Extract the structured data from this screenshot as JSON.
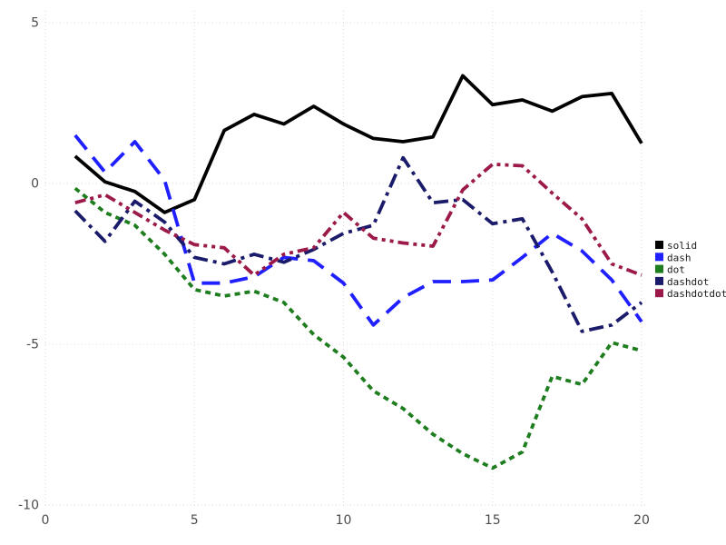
{
  "chart_data": {
    "type": "line",
    "x": [
      1,
      2,
      3,
      4,
      5,
      6,
      7,
      8,
      9,
      10,
      11,
      12,
      13,
      14,
      15,
      16,
      17,
      18,
      19,
      20
    ],
    "series": [
      {
        "name": "solid",
        "linestyle": "solid",
        "color": "#000000",
        "values": [
          0.85,
          0.05,
          -0.25,
          -0.9,
          -0.5,
          1.65,
          2.15,
          1.85,
          2.4,
          1.85,
          1.4,
          1.3,
          1.45,
          3.35,
          2.45,
          2.6,
          2.25,
          2.7,
          2.8,
          1.25
        ]
      },
      {
        "name": "dash",
        "linestyle": "dash",
        "color": "#1f1fff",
        "values": [
          1.5,
          0.35,
          1.3,
          0.1,
          -3.1,
          -3.1,
          -2.9,
          -2.3,
          -2.4,
          -3.1,
          -4.4,
          -3.55,
          -3.05,
          -3.05,
          -3.0,
          -2.3,
          -1.55,
          -2.1,
          -3.0,
          -4.3
        ]
      },
      {
        "name": "dot",
        "linestyle": "dot",
        "color": "#1e7d1e",
        "values": [
          -0.15,
          -0.9,
          -1.3,
          -2.2,
          -3.3,
          -3.5,
          -3.35,
          -3.7,
          -4.7,
          -5.4,
          -6.45,
          -7.0,
          -7.8,
          -8.4,
          -8.85,
          -8.35,
          -6.0,
          -6.25,
          -4.95,
          -5.2
        ]
      },
      {
        "name": "dashdot",
        "linestyle": "dashdot",
        "color": "#1b1b6b",
        "values": [
          -0.85,
          -1.8,
          -0.55,
          -1.2,
          -2.3,
          -2.5,
          -2.2,
          -2.45,
          -2.05,
          -1.55,
          -1.3,
          0.8,
          -0.6,
          -0.5,
          -1.25,
          -1.1,
          -2.75,
          -4.6,
          -4.4,
          -3.7
        ]
      },
      {
        "name": "dashdotdot",
        "linestyle": "dashdotdot",
        "color": "#9c1a4a",
        "values": [
          -0.6,
          -0.35,
          -0.9,
          -1.45,
          -1.9,
          -2.0,
          -2.85,
          -2.2,
          -2.0,
          -0.9,
          -1.7,
          -1.85,
          -1.95,
          -0.2,
          0.6,
          0.55,
          -0.3,
          -1.1,
          -2.5,
          -2.85
        ]
      }
    ],
    "x_ticks": [
      {
        "v": 0,
        "label": "0"
      },
      {
        "v": 5,
        "label": "5"
      },
      {
        "v": 10,
        "label": "10"
      },
      {
        "v": 15,
        "label": "15"
      },
      {
        "v": 20,
        "label": "20"
      }
    ],
    "y_ticks": [
      {
        "v": 5,
        "label": "5"
      },
      {
        "v": 0,
        "label": "0"
      },
      {
        "v": -5,
        "label": "-5"
      },
      {
        "v": -10,
        "label": "-10"
      }
    ],
    "xlim": [
      0,
      20.4
    ],
    "ylim": [
      -10.3,
      5.3
    ],
    "grid": true,
    "legend_position": "right",
    "legend_labels": [
      "solid",
      "dash",
      "dot",
      "dashdot",
      "dashdotdot"
    ],
    "title": "",
    "xlabel": "",
    "ylabel": ""
  },
  "colors": {
    "background": "#ffffff",
    "grid": "#d8d8e0",
    "tick_label": "#4d4d4d",
    "legend_text": "#1a1a1a"
  }
}
